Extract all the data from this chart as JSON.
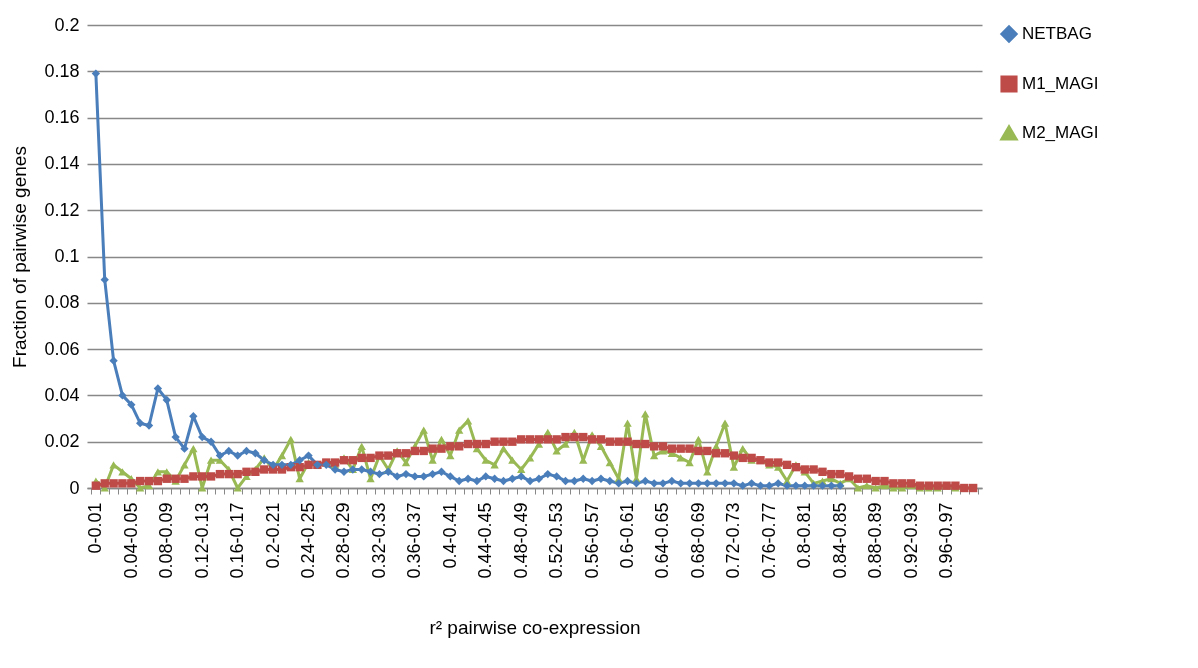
{
  "chart_data": {
    "type": "line",
    "xlabel": "r² pairwise co-expression",
    "ylabel": "Fraction of pairwise genes",
    "categories": [
      "0-0.01",
      null,
      null,
      null,
      "0.04-0.05",
      null,
      null,
      null,
      "0.08-0.09",
      null,
      null,
      null,
      "0.12-0.13",
      null,
      null,
      null,
      "0.16-0.17",
      null,
      null,
      null,
      "0.2-0.21",
      null,
      null,
      null,
      "0.24-0.25",
      null,
      null,
      null,
      "0.28-0.29",
      null,
      null,
      null,
      "0.32-0.33",
      null,
      null,
      null,
      "0.36-0.37",
      null,
      null,
      null,
      "0.4-0.41",
      null,
      null,
      null,
      "0.44-0.45",
      null,
      null,
      null,
      "0.48-0.49",
      null,
      null,
      null,
      "0.52-0.53",
      null,
      null,
      null,
      "0.56-0.57",
      null,
      null,
      null,
      "0.6-0.61",
      null,
      null,
      null,
      "0.64-0.65",
      null,
      null,
      null,
      "0.68-0.69",
      null,
      null,
      null,
      "0.72-0.73",
      null,
      null,
      null,
      "0.76-0.77",
      null,
      null,
      null,
      "0.8-0.81",
      null,
      null,
      null,
      "0.84-0.85",
      null,
      null,
      null,
      "0.88-0.89",
      null,
      null,
      null,
      "0.92-0.93",
      null,
      null,
      null,
      "0.96-0.97",
      null,
      null,
      null
    ],
    "series": [
      {
        "name": "NETBAG",
        "color": "#4a7ebb",
        "marker": "diamond",
        "values": [
          0.179,
          0.09,
          0.055,
          0.04,
          0.036,
          0.028,
          0.027,
          0.043,
          0.038,
          0.022,
          0.017,
          0.031,
          0.022,
          0.02,
          0.014,
          0.016,
          0.014,
          0.016,
          0.015,
          0.012,
          0.01,
          0.01,
          0.01,
          0.012,
          0.014,
          0.01,
          0.01,
          0.008,
          0.007,
          0.008,
          0.008,
          0.007,
          0.006,
          0.007,
          0.005,
          0.006,
          0.005,
          0.005,
          0.006,
          0.007,
          0.005,
          0.003,
          0.004,
          0.003,
          0.005,
          0.004,
          0.003,
          0.004,
          0.005,
          0.003,
          0.004,
          0.006,
          0.005,
          0.003,
          0.003,
          0.004,
          0.003,
          0.004,
          0.003,
          0.002,
          0.003,
          0.002,
          0.003,
          0.002,
          0.002,
          0.003,
          0.002,
          0.002,
          0.002,
          0.002,
          0.002,
          0.002,
          0.002,
          0.001,
          0.002,
          0.001,
          0.001,
          0.002,
          0.001,
          0.001,
          0.001,
          0.001,
          0.001,
          0.001,
          0.001,
          null,
          null,
          null,
          null,
          null,
          null,
          null,
          null,
          null,
          null,
          null,
          null,
          null,
          null,
          null
        ]
      },
      {
        "name": "M1_MAGI",
        "color": "#be4b48",
        "marker": "square",
        "values": [
          0.001,
          0.002,
          0.002,
          0.002,
          0.002,
          0.003,
          0.003,
          0.003,
          0.004,
          0.004,
          0.004,
          0.005,
          0.005,
          0.005,
          0.006,
          0.006,
          0.006,
          0.007,
          0.007,
          0.008,
          0.008,
          0.008,
          0.009,
          0.009,
          0.01,
          0.01,
          0.011,
          0.011,
          0.012,
          0.012,
          0.013,
          0.013,
          0.014,
          0.014,
          0.015,
          0.015,
          0.016,
          0.016,
          0.017,
          0.017,
          0.018,
          0.018,
          0.019,
          0.019,
          0.019,
          0.02,
          0.02,
          0.02,
          0.021,
          0.021,
          0.021,
          0.021,
          0.021,
          0.022,
          0.022,
          0.022,
          0.021,
          0.021,
          0.02,
          0.02,
          0.02,
          0.019,
          0.019,
          0.018,
          0.018,
          0.017,
          0.017,
          0.017,
          0.016,
          0.016,
          0.015,
          0.015,
          0.014,
          0.013,
          0.013,
          0.012,
          0.011,
          0.011,
          0.01,
          0.009,
          0.008,
          0.008,
          0.007,
          0.006,
          0.006,
          0.005,
          0.004,
          0.004,
          0.003,
          0.003,
          0.002,
          0.002,
          0.002,
          0.001,
          0.001,
          0.001,
          0.001,
          0.001,
          0,
          0
        ]
      },
      {
        "name": "M2_MAGI",
        "color": "#98b954",
        "marker": "triangle",
        "values": [
          0.003,
          0,
          0.01,
          0.007,
          0.004,
          0,
          0.001,
          0.007,
          0.007,
          0.003,
          0.01,
          0.017,
          0,
          0.012,
          0.012,
          0.008,
          0,
          0.005,
          0.008,
          0.013,
          0.008,
          0.014,
          0.021,
          0.004,
          0.011,
          0.01,
          0.011,
          0.01,
          0.013,
          0.008,
          0.018,
          0.004,
          0.014,
          0.008,
          0.016,
          0.011,
          0.018,
          0.025,
          0.012,
          0.021,
          0.014,
          0.025,
          0.029,
          0.017,
          0.012,
          0.01,
          0.017,
          0.012,
          0.008,
          0.013,
          0.019,
          0.024,
          0.016,
          0.019,
          0.024,
          0.012,
          0.023,
          0.018,
          0.011,
          0.004,
          0.028,
          0.004,
          0.032,
          0.014,
          0.016,
          0.015,
          0.013,
          0.011,
          0.021,
          0.007,
          0.018,
          0.028,
          0.009,
          0.017,
          0.012,
          0.012,
          0.01,
          0.009,
          0.003,
          0.01,
          0.007,
          0.002,
          0.003,
          0.004,
          0.002,
          0.004,
          0,
          0.001,
          0,
          0.001,
          0,
          0,
          0.001,
          0,
          0,
          0,
          0.001,
          0,
          0,
          0
        ]
      }
    ],
    "ylim": [
      0,
      0.2
    ],
    "yticks": [
      0,
      0.02,
      0.04,
      0.06,
      0.08,
      0.1,
      0.12,
      0.14,
      0.16,
      0.18,
      0.2
    ],
    "grid": "y",
    "legend": "right"
  }
}
